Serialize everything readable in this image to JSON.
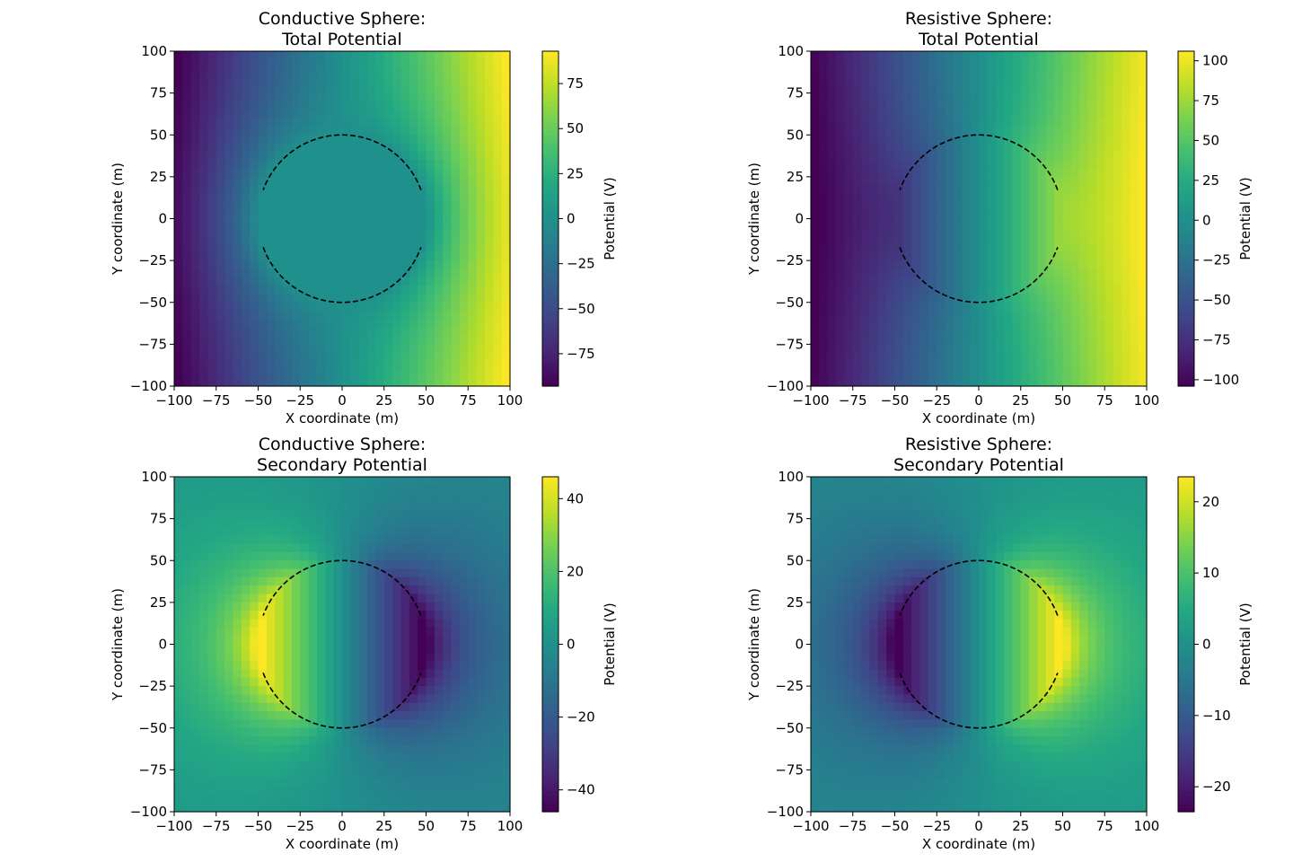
{
  "chart_data": [
    {
      "type": "heatmap",
      "title": "Conductive Sphere:\nTotal Potential",
      "xlabel": "X coordinate (m)",
      "ylabel": "Y coordinate (m)",
      "colorbar_label": "Potential (V)",
      "xlim": [
        -100,
        100
      ],
      "ylim": [
        -100,
        100
      ],
      "xticks": [
        -100,
        -75,
        -50,
        -25,
        0,
        25,
        50,
        75,
        100
      ],
      "yticks": [
        -100,
        -75,
        -50,
        -25,
        0,
        25,
        50,
        75,
        100
      ],
      "clim": [
        -93,
        93
      ],
      "cticks": [
        -75,
        -50,
        -25,
        0,
        25,
        50,
        75
      ],
      "colormap": "viridis",
      "field": "total",
      "sphere": "conductive",
      "sphere_radius": 50
    },
    {
      "type": "heatmap",
      "title": "Resistive Sphere:\nTotal Potential",
      "xlabel": "X coordinate (m)",
      "ylabel": "Y coordinate (m)",
      "colorbar_label": "Potential (V)",
      "xlim": [
        -100,
        100
      ],
      "ylim": [
        -100,
        100
      ],
      "xticks": [
        -100,
        -75,
        -50,
        -25,
        0,
        25,
        50,
        75,
        100
      ],
      "yticks": [
        -100,
        -75,
        -50,
        -25,
        0,
        25,
        50,
        75,
        100
      ],
      "clim": [
        -104,
        106
      ],
      "cticks": [
        -100,
        -75,
        -50,
        -25,
        0,
        25,
        50,
        75,
        100
      ],
      "colormap": "viridis",
      "field": "total",
      "sphere": "resistive",
      "sphere_radius": 50
    },
    {
      "type": "heatmap",
      "title": "Conductive Sphere:\nSecondary Potential",
      "xlabel": "X coordinate (m)",
      "ylabel": "Y coordinate (m)",
      "colorbar_label": "Potential (V)",
      "xlim": [
        -100,
        100
      ],
      "ylim": [
        -100,
        100
      ],
      "xticks": [
        -100,
        -75,
        -50,
        -25,
        0,
        25,
        50,
        75,
        100
      ],
      "yticks": [
        -100,
        -75,
        -50,
        -25,
        0,
        25,
        50,
        75,
        100
      ],
      "clim": [
        -46,
        46
      ],
      "cticks": [
        -40,
        -20,
        0,
        20,
        40
      ],
      "colormap": "viridis",
      "field": "secondary",
      "sphere": "conductive",
      "sphere_radius": 50
    },
    {
      "type": "heatmap",
      "title": "Resistive Sphere:\nSecondary Potential",
      "xlabel": "X coordinate (m)",
      "ylabel": "Y coordinate (m)",
      "colorbar_label": "Potential (V)",
      "xlim": [
        -100,
        100
      ],
      "ylim": [
        -100,
        100
      ],
      "xticks": [
        -100,
        -75,
        -50,
        -25,
        0,
        25,
        50,
        75,
        100
      ],
      "yticks": [
        -100,
        -75,
        -50,
        -25,
        0,
        25,
        50,
        75,
        100
      ],
      "clim": [
        -23.5,
        23.5
      ],
      "cticks": [
        -20,
        -10,
        0,
        10,
        20
      ],
      "colormap": "viridis",
      "field": "secondary",
      "sphere": "resistive",
      "sphere_radius": 50
    }
  ]
}
